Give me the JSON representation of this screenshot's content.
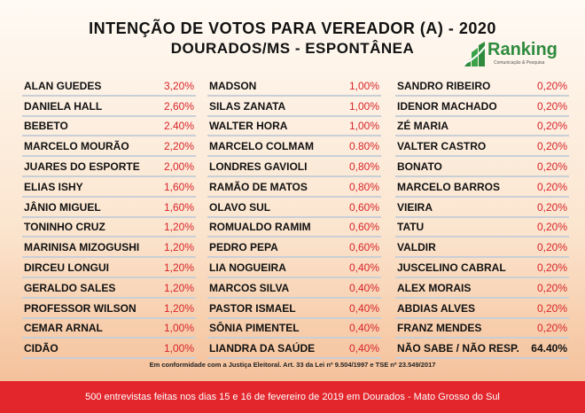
{
  "header": {
    "title": "INTENÇÃO DE VOTOS PARA VEREADOR (A) - 2020",
    "subtitle": "DOURADOS/MS - ESPONTÂNEA"
  },
  "logo": {
    "name": "Ranking",
    "tagline": "Comunicação & Pesquisa",
    "color": "#2e8b3e"
  },
  "chart_data": {
    "type": "table",
    "columns": [
      [
        {
          "name": "ALAN GUEDES",
          "value": "3,20%"
        },
        {
          "name": "DANIELA HALL",
          "value": "2,60%"
        },
        {
          "name": "BEBETO",
          "value": "2.40%"
        },
        {
          "name": "MARCELO MOURÃO",
          "value": "2,20%"
        },
        {
          "name": "JUARES DO ESPORTE",
          "value": "2,00%"
        },
        {
          "name": "ELIAS ISHY",
          "value": "1,60%"
        },
        {
          "name": "JÂNIO MIGUEL",
          "value": "1,60%"
        },
        {
          "name": "TONINHO CRUZ",
          "value": "1,20%"
        },
        {
          "name": "MARINISA MIZOGUSHI",
          "value": "1,20%"
        },
        {
          "name": "DIRCEU LONGUI",
          "value": "1,20%"
        },
        {
          "name": "GERALDO SALES",
          "value": "1,20%"
        },
        {
          "name": "PROFESSOR WILSON",
          "value": "1,20%"
        },
        {
          "name": "CEMAR ARNAL",
          "value": "1,00%"
        },
        {
          "name": "CIDÃO",
          "value": "1,00%"
        }
      ],
      [
        {
          "name": "MADSON",
          "value": "1,00%"
        },
        {
          "name": "SILAS ZANATA",
          "value": "1,00%"
        },
        {
          "name": "WALTER HORA",
          "value": "1,00%"
        },
        {
          "name": "MARCELO COLMAM",
          "value": "0.80%"
        },
        {
          "name": "LONDRES GAVIOLI",
          "value": "0,80%"
        },
        {
          "name": "RAMÃO DE MATOS",
          "value": "0,80%"
        },
        {
          "name": "OLAVO SUL",
          "value": "0,60%"
        },
        {
          "name": "ROMUALDO RAMIM",
          "value": "0,60%"
        },
        {
          "name": "PEDRO PEPA",
          "value": "0,60%"
        },
        {
          "name": "LIA NOGUEIRA",
          "value": "0,40%"
        },
        {
          "name": "MARCOS SILVA",
          "value": "0,40%"
        },
        {
          "name": "PASTOR ISMAEL",
          "value": "0,40%"
        },
        {
          "name": "SÔNIA PIMENTEL",
          "value": "0,40%"
        },
        {
          "name": "LIANDRA DA SAÚDE",
          "value": "0,40%"
        }
      ],
      [
        {
          "name": "SANDRO RIBEIRO",
          "value": "0,20%"
        },
        {
          "name": "IDENOR MACHADO",
          "value": "0,20%"
        },
        {
          "name": "ZÉ MARIA",
          "value": "0,20%"
        },
        {
          "name": "VALTER CASTRO",
          "value": "0,20%"
        },
        {
          "name": "BONATO",
          "value": "0,20%"
        },
        {
          "name": "MARCELO BARROS",
          "value": "0,20%"
        },
        {
          "name": "VIEIRA",
          "value": "0,20%"
        },
        {
          "name": "TATU",
          "value": "0,20%"
        },
        {
          "name": "VALDIR",
          "value": "0,20%"
        },
        {
          "name": "JUSCELINO CABRAL",
          "value": "0,20%"
        },
        {
          "name": "ALEX MORAIS",
          "value": "0,20%"
        },
        {
          "name": "ABDIAS ALVES",
          "value": "0,20%"
        },
        {
          "name": "FRANZ MENDES",
          "value": "0,20%"
        },
        {
          "name": "NÃO SABE / NÃO RESP.",
          "value": "64.40%",
          "highlight": true
        }
      ]
    ]
  },
  "footnote": "Em conformidade com a Justiça Eleitoral. Art. 33 da Lei nº 9.504/1997 e TSE nº 23.549/2017",
  "footer": {
    "text": "500 entrevistas feitas nos dias 15 e 16 de fevereiro de 2019 em Dourados - Mato Grosso do Sul",
    "color": "#e2262c"
  },
  "colors": {
    "value_red": "#d8242a",
    "separator": "#c9cfd6"
  }
}
